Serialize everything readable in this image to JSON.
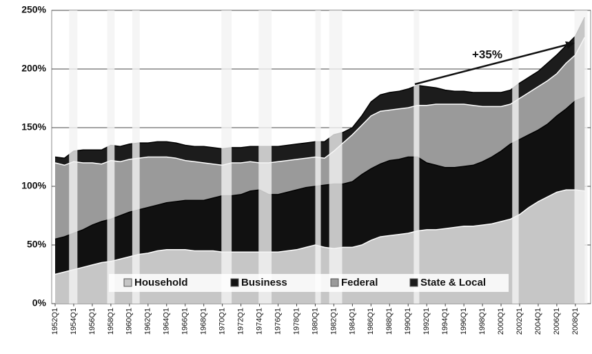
{
  "chart_data": {
    "type": "stacked-area",
    "categories": [
      "1952Q1",
      null,
      "1954Q1",
      null,
      "1956Q1",
      null,
      "1958Q1",
      null,
      "1960Q1",
      null,
      "1962Q1",
      null,
      "1964Q1",
      null,
      "1966Q1",
      null,
      "1968Q1",
      null,
      "1970Q1",
      null,
      "1972Q1",
      null,
      "1974Q1",
      null,
      "1976Q1",
      null,
      "1978Q1",
      null,
      "1980Q1",
      null,
      "1982Q1",
      null,
      "1984Q1",
      null,
      "1986Q1",
      null,
      "1988Q1",
      null,
      "1990Q1",
      null,
      "1992Q1",
      null,
      "1994Q1",
      null,
      "1996Q1",
      null,
      "1998Q1",
      null,
      "2000Q1",
      null,
      "2002Q1",
      null,
      "2004Q1",
      null,
      "2006Q1",
      null,
      "2008Q1",
      null
    ],
    "series": [
      {
        "name": "Household",
        "color": "#c6c6c6",
        "values": [
          25,
          27,
          29,
          31,
          33,
          35,
          36,
          38,
          40,
          42,
          43,
          45,
          46,
          46,
          46,
          45,
          45,
          45,
          44,
          44,
          44,
          44,
          44,
          44,
          44,
          45,
          46,
          48,
          50,
          48,
          47,
          48,
          48,
          50,
          54,
          57,
          58,
          59,
          60,
          62,
          63,
          63,
          64,
          65,
          66,
          66,
          67,
          68,
          70,
          72,
          76,
          82,
          87,
          91,
          95,
          97,
          97,
          96
        ]
      },
      {
        "name": "Business",
        "color": "#111111",
        "values": [
          30,
          30,
          31,
          32,
          34,
          35,
          36,
          37,
          38,
          38,
          39,
          39,
          40,
          41,
          42,
          43,
          43,
          45,
          48,
          48,
          49,
          52,
          53,
          49,
          49,
          50,
          51,
          51,
          50,
          53,
          55,
          54,
          56,
          60,
          61,
          62,
          64,
          64,
          65,
          63,
          57,
          55,
          52,
          51,
          51,
          52,
          54,
          57,
          60,
          64,
          64,
          62,
          61,
          62,
          65,
          69,
          76,
          80
        ]
      },
      {
        "name": "Federal",
        "color": "#9a9a9a",
        "values": [
          65,
          61,
          61,
          57,
          53,
          49,
          50,
          46,
          45,
          44,
          43,
          41,
          39,
          37,
          34,
          33,
          32,
          29,
          26,
          28,
          27,
          25,
          23,
          27,
          28,
          27,
          26,
          25,
          25,
          23,
          28,
          35,
          40,
          42,
          45,
          45,
          43,
          43,
          42,
          44,
          49,
          52,
          54,
          54,
          53,
          51,
          47,
          43,
          38,
          34,
          35,
          36,
          37,
          37,
          36,
          39,
          39,
          51
        ]
      },
      {
        "name": "State & Local",
        "color": "#1c1c1c",
        "values": [
          5,
          6,
          9,
          11,
          11,
          12,
          13,
          13,
          13,
          13,
          12,
          13,
          13,
          13,
          13,
          13,
          14,
          14,
          14,
          13,
          13,
          13,
          14,
          14,
          13,
          13,
          13,
          13,
          13,
          14,
          14,
          9,
          6,
          8,
          12,
          14,
          15,
          15,
          16,
          17,
          16,
          14,
          12,
          11,
          11,
          11,
          12,
          12,
          12,
          12,
          13,
          13,
          13,
          15,
          16,
          15,
          16,
          17
        ]
      }
    ],
    "recessions": [
      [
        1953.5,
        1954.4
      ],
      [
        1957.6,
        1958.4
      ],
      [
        1960.3,
        1961.1
      ],
      [
        1969.9,
        1971.0
      ],
      [
        1973.9,
        1975.3
      ],
      [
        1980.0,
        1980.6
      ],
      [
        1981.5,
        1982.9
      ],
      [
        1990.6,
        1991.2
      ],
      [
        2001.2,
        2001.9
      ],
      [
        2007.9,
        2009.3
      ]
    ],
    "recession_start_year": 1952,
    "annotation": {
      "text": "+35%"
    },
    "ylim": [
      0,
      250
    ],
    "yticks": [
      {
        "value": 0,
        "label": "0%"
      },
      {
        "value": 50,
        "label": "50%"
      },
      {
        "value": 100,
        "label": "100%"
      },
      {
        "value": 150,
        "label": "150%"
      },
      {
        "value": 200,
        "label": "200%"
      },
      {
        "value": 250,
        "label": "250%"
      }
    ],
    "grid": true,
    "legend": "bottom"
  }
}
